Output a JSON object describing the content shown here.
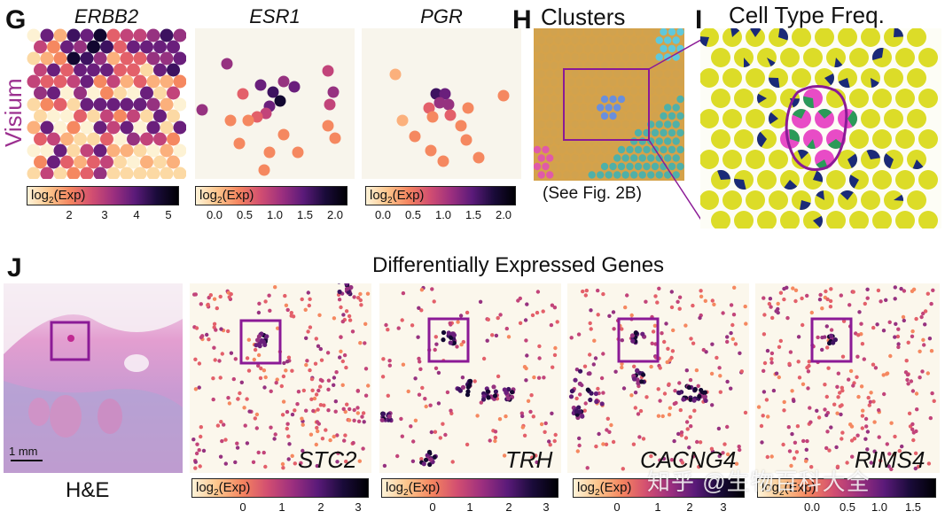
{
  "panels": {
    "G": "G",
    "H": "H",
    "I": "I",
    "J": "J"
  },
  "visium_label": "Visium",
  "top_genes": [
    "ERBB2",
    "ESR1",
    "PGR"
  ],
  "clusters_title": "Clusters",
  "clusters_caption": "(See Fig. 2B)",
  "cell_type_title": "Cell Type Freq.",
  "deg_title": "Differentially Expressed Genes",
  "he_label": "H&E",
  "scale_bar_label": "1 mm",
  "bottom_genes": [
    "STC2",
    "TRH",
    "CACNG4",
    "RIMS4"
  ],
  "colorbar_label_prefix": "log",
  "colorbar_label_sub": "2",
  "colorbar_label_suffix": "(Exp)",
  "colorbars": {
    "erbb2": [
      "2",
      "3",
      "4",
      "5"
    ],
    "esr1": [
      "0.0",
      "0.5",
      "1.0",
      "1.5",
      "2.0"
    ],
    "pgr": [
      "0.0",
      "0.5",
      "1.0",
      "1.5",
      "2.0"
    ],
    "stc2": [
      "0",
      "1",
      "2",
      "3"
    ],
    "trh": [
      "0",
      "1",
      "2",
      "3"
    ],
    "cacng4": [
      "0",
      "1",
      "2",
      "3"
    ],
    "rims4": [
      "0.0",
      "0.5",
      "1.0",
      "1.5"
    ]
  },
  "watermark": "知乎 @生物百科大全",
  "colors": {
    "accent": "#8b1a96",
    "visium": "#9b2f8f"
  }
}
